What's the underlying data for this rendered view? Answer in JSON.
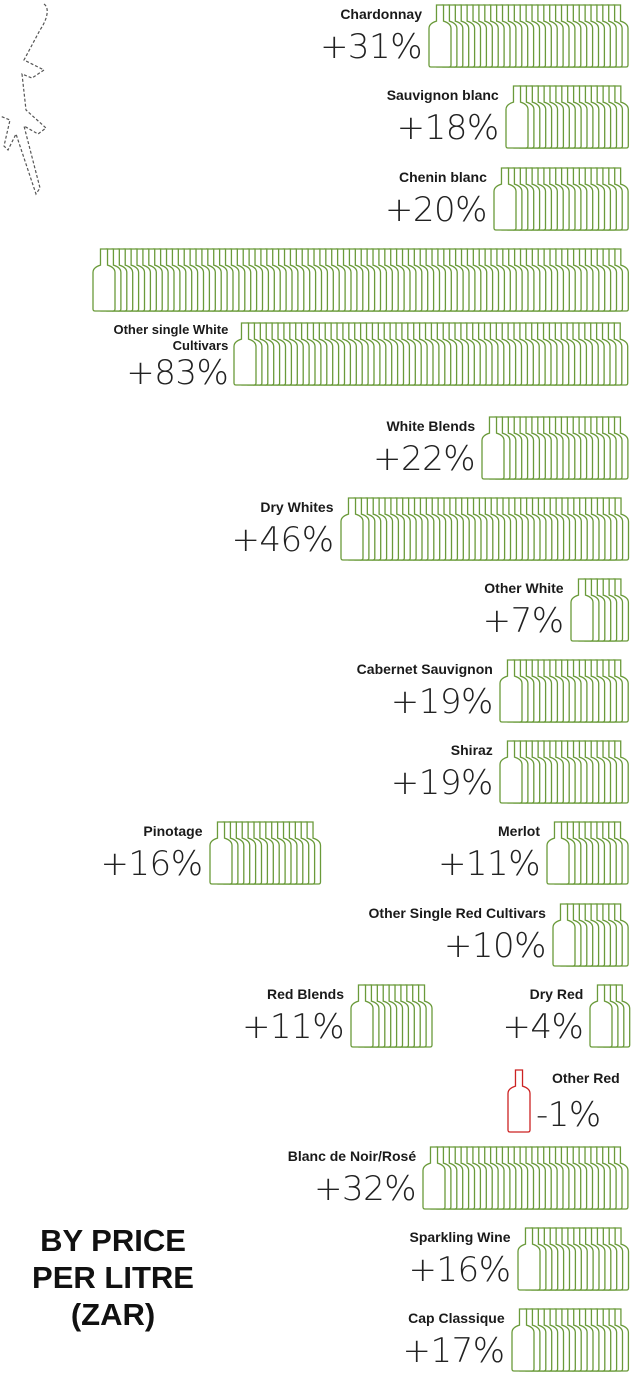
{
  "title": [
    "BY PRICE",
    "PER LITRE",
    "(ZAR)"
  ],
  "colors": {
    "increase": "#6a9a3a",
    "decrease": "#cc2222",
    "text": "#1a1a1a"
  },
  "decoration": {
    "icon": "airplane-outline-icon"
  },
  "chart_data": {
    "type": "pictograph",
    "unit": "% change",
    "categories": [
      "Chardonnay",
      "Sauvignon blanc",
      "Chenin blanc",
      "Other single White Cultivars",
      "White Blends",
      "Dry Whites",
      "Other White",
      "Cabernet Sauvignon",
      "Shiraz",
      "Pinotage",
      "Merlot",
      "Other Single Red Cultivars",
      "Red Blends",
      "Dry Red",
      "Other Red",
      "Blanc de Noir/Rosé",
      "Sparkling Wine",
      "Cap Classique"
    ],
    "values": [
      31,
      18,
      20,
      83,
      22,
      46,
      7,
      19,
      19,
      16,
      11,
      10,
      11,
      4,
      -1,
      32,
      16,
      17
    ],
    "value_labels": [
      "+31%",
      "+18%",
      "+20%",
      "+83%",
      "+22%",
      "+46%",
      "+7%",
      "+19%",
      "+19%",
      "+16%",
      "+11%",
      "+10%",
      "+11%",
      "+4%",
      "-1%",
      "+32%",
      "+16%",
      "+17%"
    ]
  }
}
